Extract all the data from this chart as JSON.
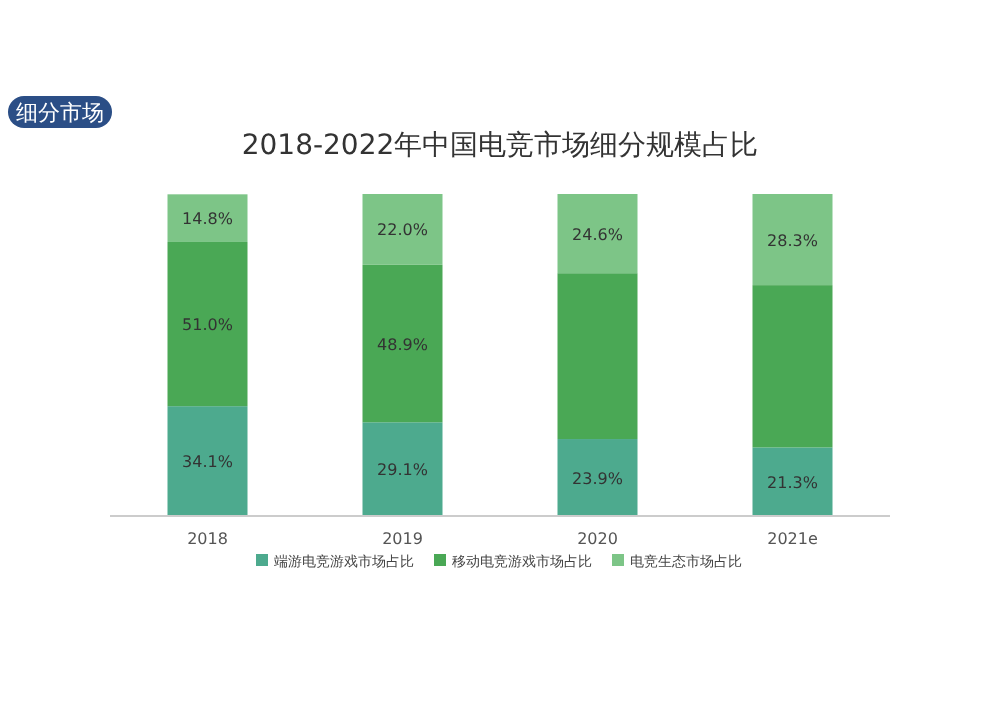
{
  "chart_data": {
    "type": "bar",
    "stacked": true,
    "title": "2018-2022年中国电竞市场细分规模占比",
    "annotations": [
      "细分市场"
    ],
    "categories": [
      "2018",
      "2019",
      "2020",
      "2021e"
    ],
    "legend": "bottom",
    "series": [
      {
        "name": "端游电竞游戏市场占比",
        "color": "#4daa8e",
        "values": [
          34.1,
          29.1,
          23.9,
          21.3
        ],
        "value_labels": [
          "34.1%",
          "29.1%",
          "23.9%",
          "21.3%"
        ]
      },
      {
        "name": "移动电竞游戏市场占比",
        "color": "#4aa855",
        "values": [
          51.0,
          48.9,
          51.5,
          50.4
        ],
        "value_labels": [
          "51.0%",
          "48.9%",
          null,
          null
        ]
      },
      {
        "name": "电竞生态市场占比",
        "color": "#7dc587",
        "values": [
          14.8,
          22.0,
          24.6,
          28.3
        ],
        "value_labels": [
          "14.8%",
          "22.0%",
          "24.6%",
          "28.3%"
        ]
      }
    ]
  }
}
